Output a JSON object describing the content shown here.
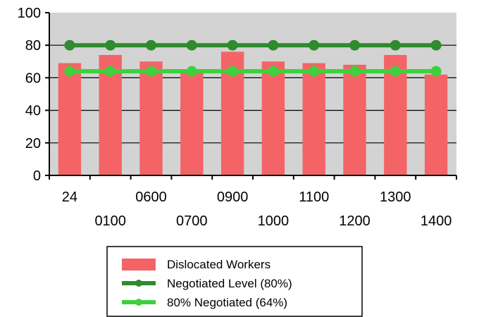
{
  "chart_data": {
    "type": "bar",
    "title": "",
    "xlabel": "",
    "ylabel": "",
    "ylim": [
      0,
      100
    ],
    "yticks": [
      0,
      20,
      40,
      60,
      80,
      100
    ],
    "categories": [
      "24",
      "0100",
      "0600",
      "0700",
      "0900",
      "1000",
      "1100",
      "1200",
      "1300",
      "1400"
    ],
    "series": [
      {
        "name": "Dislocated Workers",
        "kind": "bar",
        "color": "#f46466",
        "values": [
          69,
          74,
          70,
          63,
          76,
          70,
          69,
          68,
          74,
          62
        ]
      },
      {
        "name": "Negotiated Level (80%)",
        "kind": "line",
        "color": "#2e8b2e",
        "values": [
          80,
          80,
          80,
          80,
          80,
          80,
          80,
          80,
          80,
          80
        ]
      },
      {
        "name": "80% Negotiated (64%)",
        "kind": "line",
        "color": "#3dd13d",
        "values": [
          64,
          64,
          64,
          64,
          64,
          64,
          64,
          64,
          64,
          64
        ]
      }
    ],
    "grid": true,
    "plot_background": "#d3d3d3",
    "legend_position": "bottom"
  }
}
